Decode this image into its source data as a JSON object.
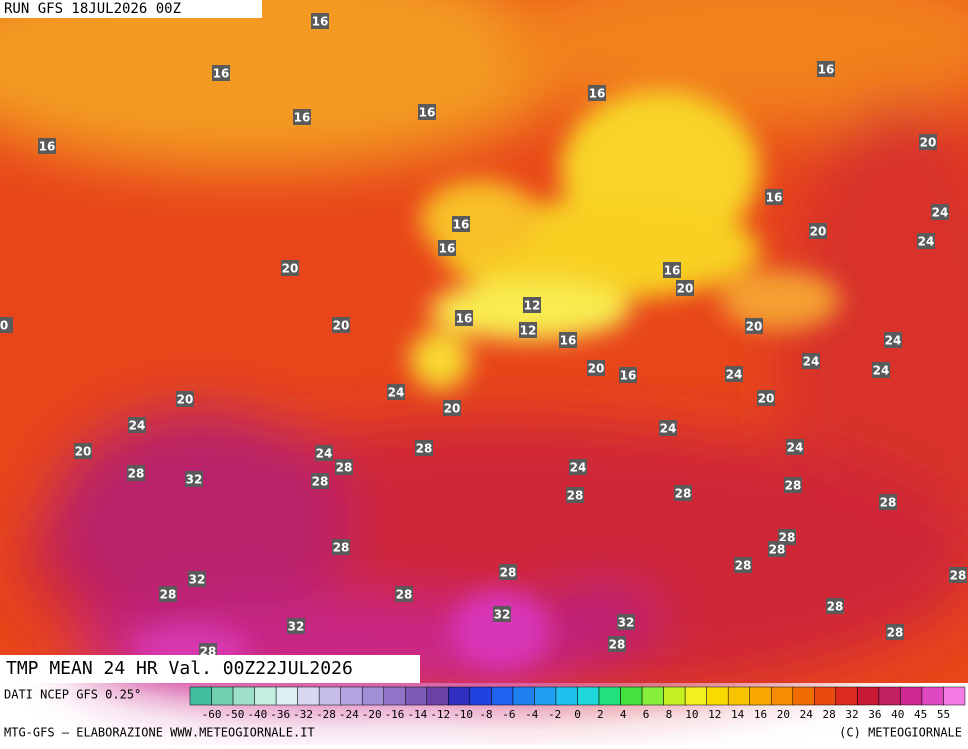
{
  "header": {
    "run": "RUN GFS 18JUL2026 00Z",
    "title": "TMP MEAN 24 HR Val. 00Z22JUL2026"
  },
  "map": {
    "contour_labels": [
      "16",
      "16",
      "16",
      "16",
      "16",
      "16",
      "16",
      "20",
      "16",
      "24",
      "24",
      "20",
      "16",
      "16",
      "20",
      "16",
      "20",
      "12",
      "16",
      "12",
      "20",
      "20",
      "24",
      "16",
      "24",
      "20",
      "16",
      "24",
      "24",
      "24",
      "20",
      "20",
      "20",
      "24",
      "28",
      "24",
      "20",
      "24",
      "28",
      "24",
      "24",
      "28",
      "32",
      "28",
      "28",
      "28",
      "28",
      "28",
      "28",
      "28",
      "28",
      "28",
      "28",
      "32",
      "28",
      "28",
      "28",
      "32",
      "28",
      "32",
      "32",
      "28",
      "28",
      "28",
      "0"
    ]
  },
  "colorbar": {
    "labels": [
      "-60",
      "-50",
      "-40",
      "-36",
      "-32",
      "-28",
      "-24",
      "-20",
      "-16",
      "-14",
      "-12",
      "-10",
      "-8",
      "-6",
      "-4",
      "-2",
      "0",
      "2",
      "4",
      "6",
      "8",
      "10",
      "12",
      "14",
      "16",
      "20",
      "24",
      "28",
      "32",
      "36",
      "40",
      "45",
      "55"
    ],
    "colors": [
      "#3fbf9f",
      "#6fd0b2",
      "#9fe0c8",
      "#c4eede",
      "#ddf0f6",
      "#d8d8f2",
      "#c6bde9",
      "#b3a6e0",
      "#a08ed6",
      "#8f74c8",
      "#7d5bb7",
      "#6a42a6",
      "#2f2fbf",
      "#2142df",
      "#2061ef",
      "#2080f2",
      "#20a0f2",
      "#20c0f0",
      "#20d8dc",
      "#22e27e",
      "#44e23e",
      "#86f03c",
      "#c4f022",
      "#f2f020",
      "#f8dc00",
      "#f8c400",
      "#f8a800",
      "#f88c00",
      "#f06c00",
      "#e84a0c",
      "#de2a1e",
      "#c81a34",
      "#c02060",
      "#d02a92",
      "#e048c2",
      "#f27ae2"
    ]
  },
  "footer": {
    "source": "DATI NCEP GFS 0.25°",
    "credit": "MTG-GFS — ELABORAZIONE WWW.METEOGIORNALE.IT",
    "copyright": "(C) METEOGIORNALE"
  }
}
